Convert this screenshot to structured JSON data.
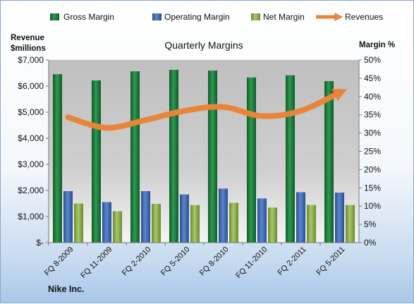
{
  "legend": [
    {
      "label": "Gross Margin",
      "icon": "gross-margin-swatch-icon",
      "color": "#1e7a3c"
    },
    {
      "label": "Operating Margin",
      "icon": "operating-margin-swatch-icon",
      "color": "#3f6db5"
    },
    {
      "label": "Net Margin",
      "icon": "net-margin-swatch-icon",
      "color": "#8db04a"
    },
    {
      "label": "Revenues",
      "icon": "revenues-arrow-icon",
      "color": "#e8853a"
    }
  ],
  "footer": {
    "company": "Nike Inc."
  },
  "chart_data": {
    "type": "bar",
    "title": "Quarterly Margins",
    "ylabel_left_line1": "Revenue",
    "ylabel_left_line2": "$millions",
    "ylabel_right": "Margin %",
    "categories": [
      "FQ 8-2009",
      "FQ 11-2009",
      "FQ 2-2010",
      "FQ 5-2010",
      "FQ 8-2010",
      "FQ 11-2010",
      "FQ 2-2011",
      "FQ 5-2011"
    ],
    "ylim_left": [
      0,
      7000
    ],
    "ylim_right": [
      0,
      50
    ],
    "yticks_left": [
      "$-",
      "$1,000",
      "$2,000",
      "$3,000",
      "$4,000",
      "$5,000",
      "$6,000",
      "$7,000"
    ],
    "yticks_right": [
      "0%",
      "5%",
      "10%",
      "15%",
      "20%",
      "25%",
      "30%",
      "35%",
      "40%",
      "45%",
      "50%"
    ],
    "series": [
      {
        "name": "Gross Margin",
        "axis": "right",
        "kind": "bar",
        "color": "#1e7a3c",
        "values": [
          46.1,
          44.4,
          46.9,
          47.3,
          47.1,
          45.2,
          45.8,
          44.2
        ]
      },
      {
        "name": "Operating Margin",
        "axis": "right",
        "kind": "bar",
        "color": "#3f6db5",
        "values": [
          14.1,
          11.1,
          14.1,
          13.2,
          14.8,
          12.1,
          13.8,
          13.7
        ]
      },
      {
        "name": "Net Margin",
        "axis": "right",
        "kind": "bar",
        "color": "#8db04a",
        "values": [
          10.7,
          8.6,
          10.6,
          10.3,
          10.9,
          9.6,
          10.3,
          10.3
        ]
      },
      {
        "name": "Revenues",
        "axis": "left",
        "kind": "line",
        "color": "#e8853a",
        "values": [
          4800,
          4400,
          4700,
          5050,
          5200,
          4850,
          5050,
          5750
        ]
      }
    ],
    "grid": false,
    "legend_position": "top"
  }
}
